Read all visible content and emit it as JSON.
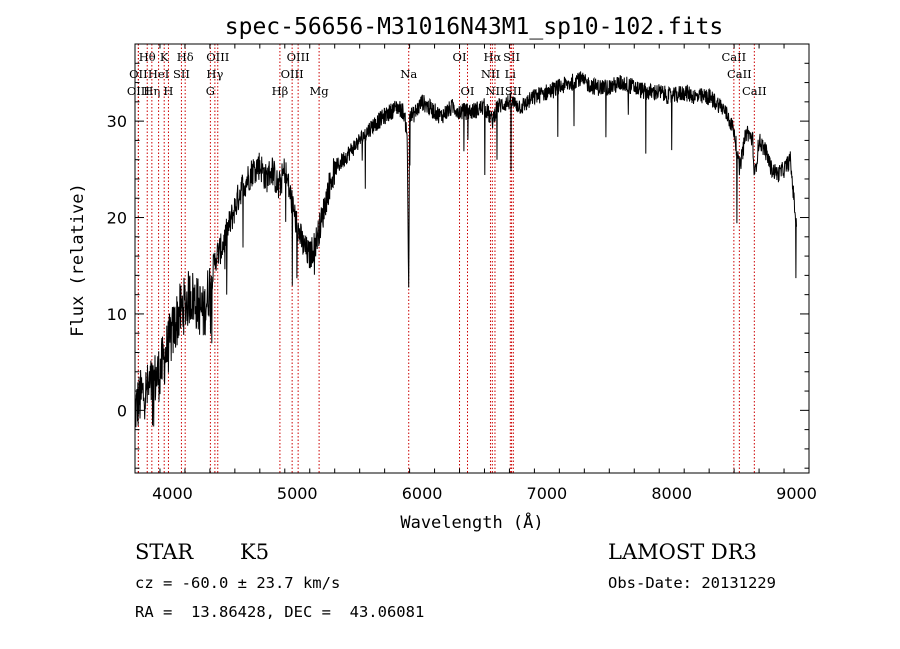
{
  "chart_data": {
    "type": "line",
    "title": "spec-56656-M31016N43M1_sp10-102.fits",
    "xlabel": "Wavelength (Å)",
    "ylabel": "Flux (relative)",
    "xlim": [
      3700,
      9100
    ],
    "ylim": [
      -6.5,
      38
    ],
    "xticks": [
      4000,
      5000,
      6000,
      7000,
      8000,
      9000
    ],
    "xtick_labels": [
      "4000",
      "5000",
      "6000",
      "7000",
      "8000",
      "9000"
    ],
    "yticks": [
      0,
      10,
      20,
      30
    ],
    "ytick_labels": [
      "0",
      "10",
      "20",
      "30"
    ],
    "series": [
      {
        "name": "flux",
        "x": [
          3700,
          3750,
          3800,
          3850,
          3900,
          3950,
          4000,
          4050,
          4100,
          4150,
          4200,
          4250,
          4300,
          4350,
          4400,
          4450,
          4500,
          4550,
          4600,
          4650,
          4700,
          4750,
          4800,
          4850,
          4900,
          4950,
          5000,
          5050,
          5100,
          5150,
          5200,
          5250,
          5300,
          5400,
          5500,
          5600,
          5700,
          5800,
          5850,
          5880,
          5893,
          5900,
          5920,
          5950,
          6000,
          6050,
          6100,
          6150,
          6200,
          6250,
          6300,
          6400,
          6500,
          6563,
          6600,
          6700,
          6800,
          6900,
          7000,
          7100,
          7200,
          7250,
          7300,
          7400,
          7500,
          7600,
          7700,
          7800,
          7900,
          8000,
          8100,
          8200,
          8300,
          8400,
          8450,
          8500,
          8542,
          8600,
          8650,
          8662,
          8700,
          8750,
          8800,
          8850,
          8900,
          8950,
          9000
        ],
        "y": [
          0,
          1.5,
          2,
          3,
          4,
          6,
          8,
          10,
          11,
          12,
          11,
          10,
          13,
          16,
          17,
          19,
          21,
          23,
          24,
          25,
          25.5,
          24,
          25,
          23,
          25,
          22,
          19,
          17,
          16,
          17.5,
          20,
          23,
          25,
          26.5,
          28,
          29.5,
          30.5,
          31.5,
          31,
          29,
          12,
          31,
          30.5,
          31,
          32,
          31.5,
          31,
          30.5,
          31,
          31.5,
          31,
          31,
          31.5,
          30,
          31.5,
          32,
          31.5,
          32.5,
          33,
          33.5,
          34,
          34.5,
          34,
          33.5,
          33.5,
          34,
          33.5,
          33,
          33,
          32.5,
          33,
          32.5,
          32.5,
          31.5,
          30.5,
          29,
          25,
          29,
          28,
          24,
          28,
          27,
          25,
          24.5,
          25,
          26,
          19
        ]
      }
    ],
    "line_markers": [
      {
        "label": "Hθ",
        "wavelength": 3798,
        "row": 1
      },
      {
        "label": "OII",
        "wavelength": 3727,
        "row": 2
      },
      {
        "label": "OIII",
        "wavelength": 3727,
        "row": 3
      },
      {
        "label": "Hη",
        "wavelength": 3835,
        "row": 3
      },
      {
        "label": "HeI",
        "wavelength": 3889,
        "row": 2
      },
      {
        "label": "K",
        "wavelength": 3934,
        "row": 1
      },
      {
        "label": "H",
        "wavelength": 3968,
        "row": 3
      },
      {
        "label": "SII",
        "wavelength": 4072,
        "row": 2
      },
      {
        "label": "Hδ",
        "wavelength": 4102,
        "row": 1
      },
      {
        "label": "G",
        "wavelength": 4304,
        "row": 3
      },
      {
        "label": "OIII",
        "wavelength": 4363,
        "row": 1
      },
      {
        "label": "Hγ",
        "wavelength": 4340,
        "row": 2
      },
      {
        "label": "Hβ",
        "wavelength": 4861,
        "row": 3
      },
      {
        "label": "OIII",
        "wavelength": 4959,
        "row": 2
      },
      {
        "label": "OIII",
        "wavelength": 5007,
        "row": 1
      },
      {
        "label": "Mg",
        "wavelength": 5175,
        "row": 3
      },
      {
        "label": "Na",
        "wavelength": 5893,
        "row": 2
      },
      {
        "label": "OI",
        "wavelength": 6300,
        "row": 1
      },
      {
        "label": "OI",
        "wavelength": 6364,
        "row": 3
      },
      {
        "label": "Hα",
        "wavelength": 6563,
        "row": 1
      },
      {
        "label": "NII",
        "wavelength": 6548,
        "row": 2
      },
      {
        "label": "NII",
        "wavelength": 6584,
        "row": 3
      },
      {
        "label": "SII",
        "wavelength": 6717,
        "row": 1
      },
      {
        "label": "Li",
        "wavelength": 6707,
        "row": 2
      },
      {
        "label": "SII",
        "wavelength": 6731,
        "row": 3
      },
      {
        "label": "CaII",
        "wavelength": 8498,
        "row": 1
      },
      {
        "label": "CaII",
        "wavelength": 8542,
        "row": 2
      },
      {
        "label": "CaII",
        "wavelength": 8662,
        "row": 3
      }
    ]
  },
  "info": {
    "class_label": "STAR",
    "subclass_label": "K5",
    "survey_label": "LAMOST DR3",
    "redshift_line": "cz = -60.0 ± 23.7 km/s",
    "obs_date_line": "Obs-Date: 20131229",
    "coords_line": "RA =  13.86428, DEC =  43.06081"
  },
  "colors": {
    "spectrum": "#000000",
    "line_markers": "#cc0000",
    "axes": "#000000"
  }
}
